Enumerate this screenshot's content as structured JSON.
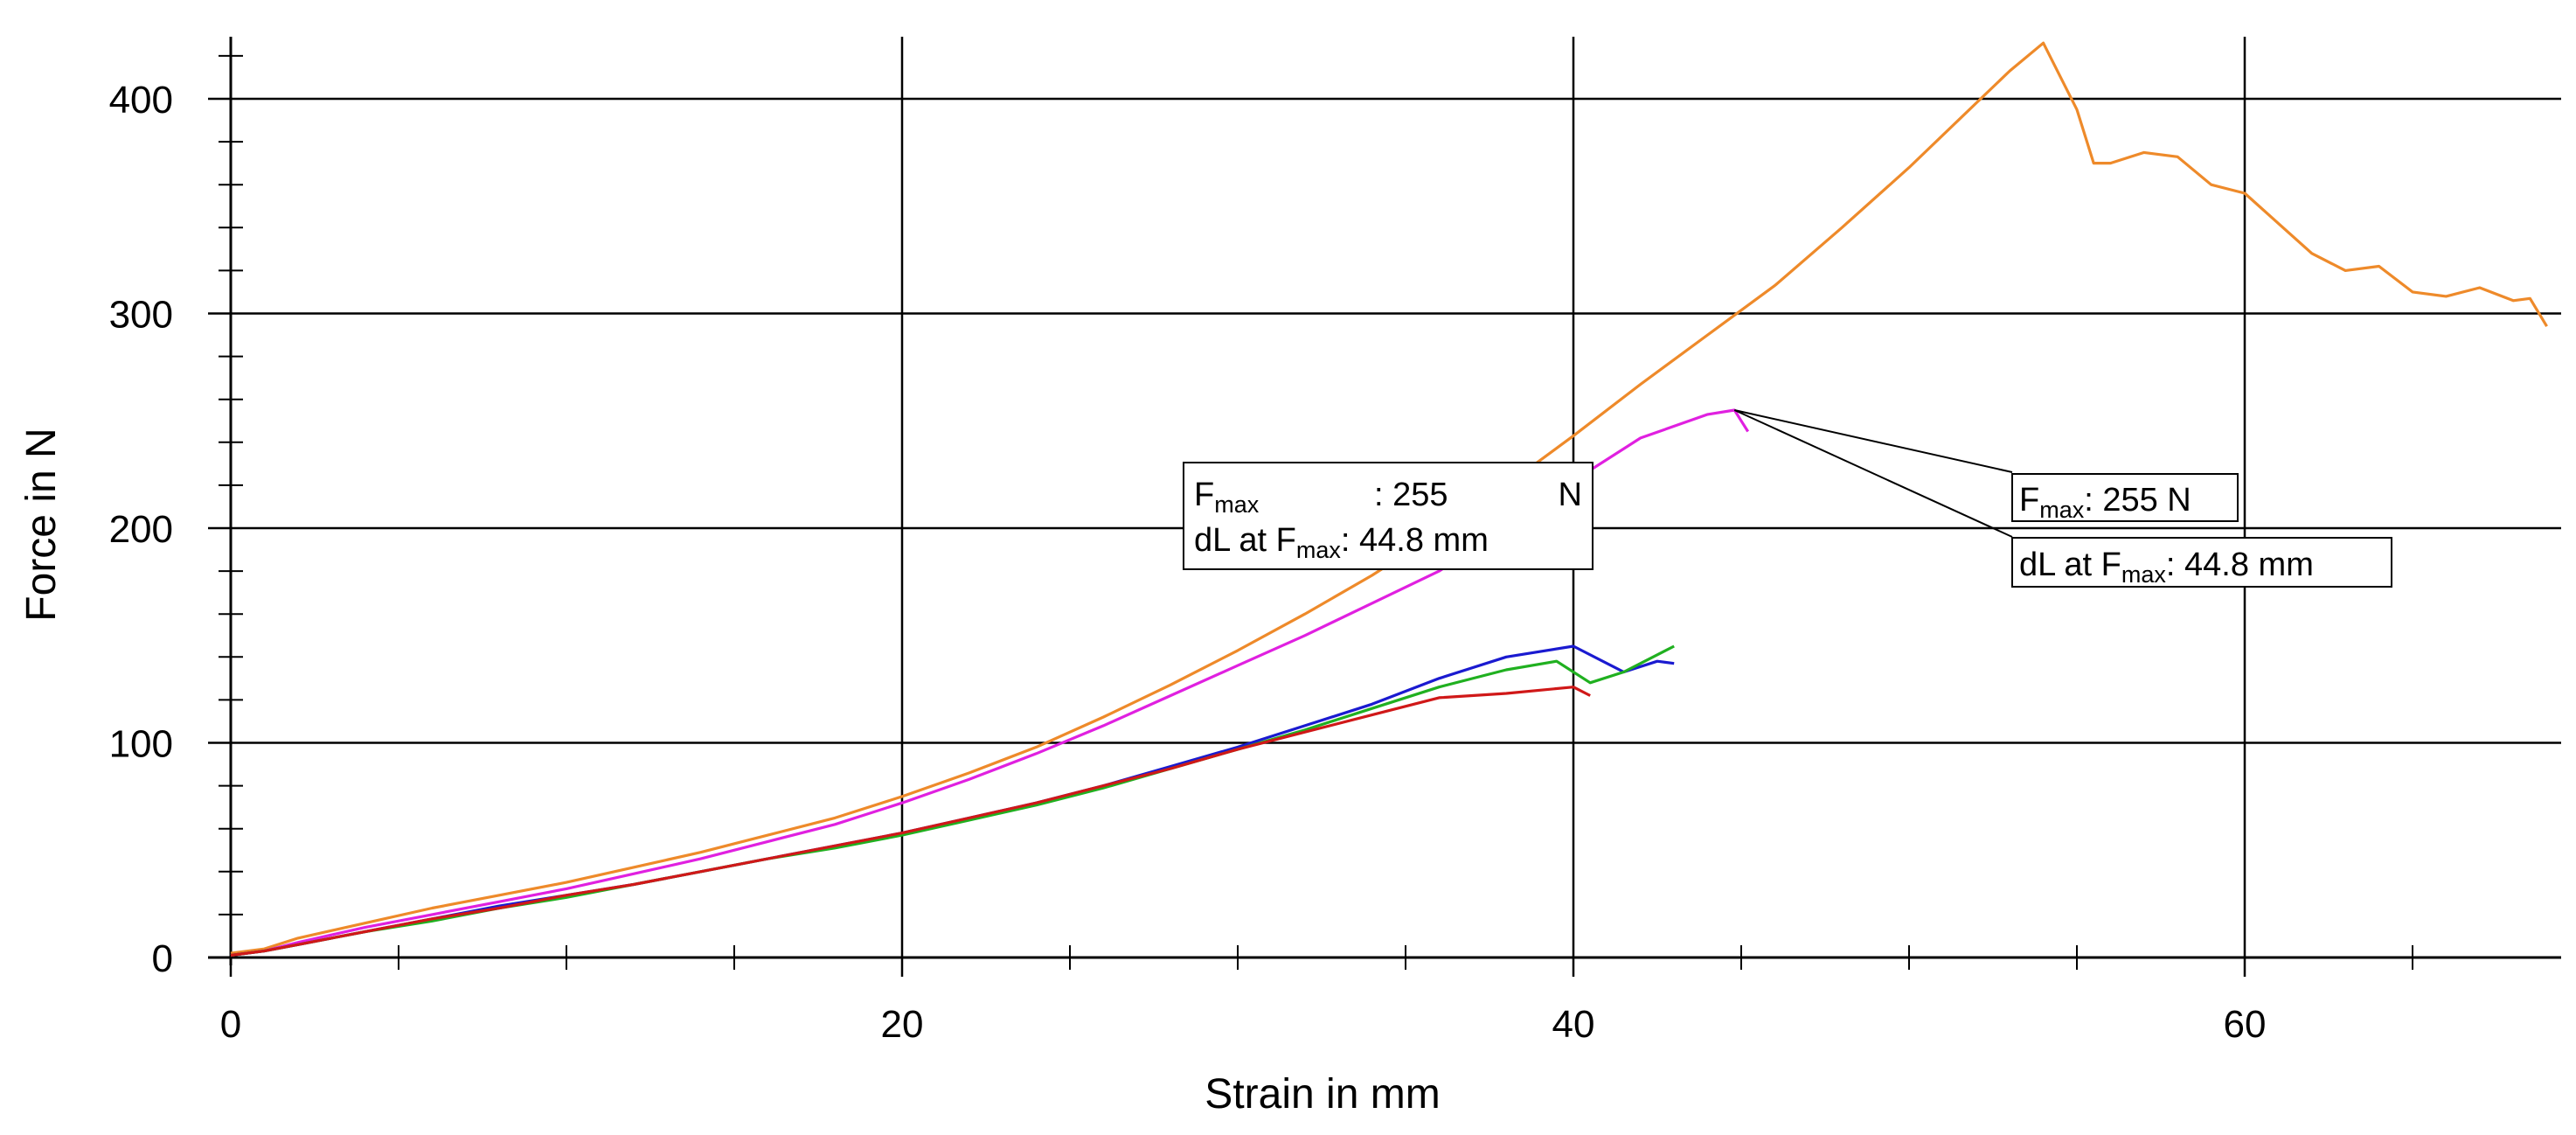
{
  "chart_data": {
    "type": "line",
    "xlabel": "Strain in mm",
    "ylabel": "Force in N",
    "xlim": [
      0,
      69
    ],
    "ylim": [
      0,
      430
    ],
    "xticks": [
      0,
      20,
      40,
      60
    ],
    "yticks": [
      0,
      100,
      200,
      300,
      400
    ],
    "x_minor_step": 5,
    "y_minor_step": 20,
    "grid": true,
    "series": [
      {
        "color": "#ee8a2a",
        "x": [
          0,
          1,
          2,
          4,
          6,
          8,
          10,
          12,
          14,
          16,
          18,
          20,
          22,
          24,
          26,
          28,
          30,
          32,
          34,
          36,
          38,
          40,
          42,
          44,
          46,
          48,
          50,
          52,
          53,
          54,
          55,
          55.5,
          56,
          57,
          58,
          59,
          60,
          61,
          62,
          63,
          64,
          65,
          66,
          67,
          68,
          68.5,
          69
        ],
        "y": [
          2,
          4,
          9,
          16,
          23,
          29,
          35,
          42,
          49,
          57,
          65,
          75,
          86,
          98,
          112,
          127,
          143,
          160,
          178,
          198,
          220,
          243,
          267,
          290,
          313,
          340,
          368,
          398,
          413,
          426,
          395,
          370,
          370,
          375,
          373,
          360,
          356,
          342,
          328,
          320,
          322,
          310,
          308,
          312,
          306,
          307,
          294
        ]
      },
      {
        "color": "#e020e0",
        "x": [
          0,
          1,
          2,
          4,
          6,
          8,
          10,
          12,
          14,
          16,
          18,
          20,
          22,
          24,
          26,
          28,
          30,
          32,
          34,
          36,
          38,
          40,
          42,
          44,
          44.8,
          45,
          45.2
        ],
        "y": [
          1,
          3,
          7,
          14,
          20,
          26,
          32,
          39,
          46,
          54,
          62,
          72,
          83,
          95,
          108,
          122,
          136,
          150,
          165,
          180,
          200,
          222,
          242,
          253,
          255,
          250,
          245
        ]
      },
      {
        "color": "#1a1ad0",
        "x": [
          0,
          1,
          2,
          4,
          6,
          8,
          10,
          12,
          14,
          16,
          18,
          20,
          22,
          24,
          26,
          28,
          30,
          32,
          34,
          36,
          38,
          40,
          41.5,
          42.5,
          43
        ],
        "y": [
          1,
          3,
          6,
          12,
          18,
          24,
          29,
          34,
          40,
          46,
          52,
          58,
          65,
          72,
          80,
          89,
          98,
          108,
          118,
          130,
          140,
          145,
          133,
          138,
          137
        ]
      },
      {
        "color": "#20b020",
        "x": [
          0,
          1,
          2,
          4,
          6,
          8,
          10,
          12,
          14,
          16,
          18,
          20,
          22,
          24,
          26,
          28,
          30,
          32,
          34,
          36,
          38,
          39.5,
          40.5,
          41.5,
          43
        ],
        "y": [
          1,
          3,
          6,
          12,
          17,
          23,
          28,
          34,
          40,
          46,
          51,
          57,
          64,
          71,
          79,
          88,
          97,
          106,
          116,
          126,
          134,
          138,
          128,
          133,
          145
        ]
      },
      {
        "color": "#d01818",
        "x": [
          0,
          1,
          2,
          4,
          6,
          8,
          10,
          12,
          14,
          16,
          18,
          20,
          22,
          24,
          26,
          28,
          30,
          32,
          34,
          36,
          38,
          40,
          40.5
        ],
        "y": [
          1,
          3,
          6,
          12,
          18,
          23,
          29,
          34,
          40,
          46,
          52,
          58,
          65,
          72,
          80,
          88,
          97,
          105,
          113,
          121,
          123,
          126,
          122
        ]
      }
    ],
    "annotations": {
      "left": {
        "line1_main": "F",
        "line1_sub": "max",
        "line1_sep": ": 255",
        "line1_unit": "N",
        "line2_main": "dL at F",
        "line2_sub": "max",
        "line2_value": ":   44.8 mm"
      },
      "right_top": {
        "main": "F",
        "sub": "max",
        "value": ": 255 N"
      },
      "right_bottom": {
        "main": "dL at F",
        "sub": "max",
        "value": ": 44.8 mm"
      },
      "leader_target": {
        "x": 44.8,
        "y": 255
      }
    }
  }
}
